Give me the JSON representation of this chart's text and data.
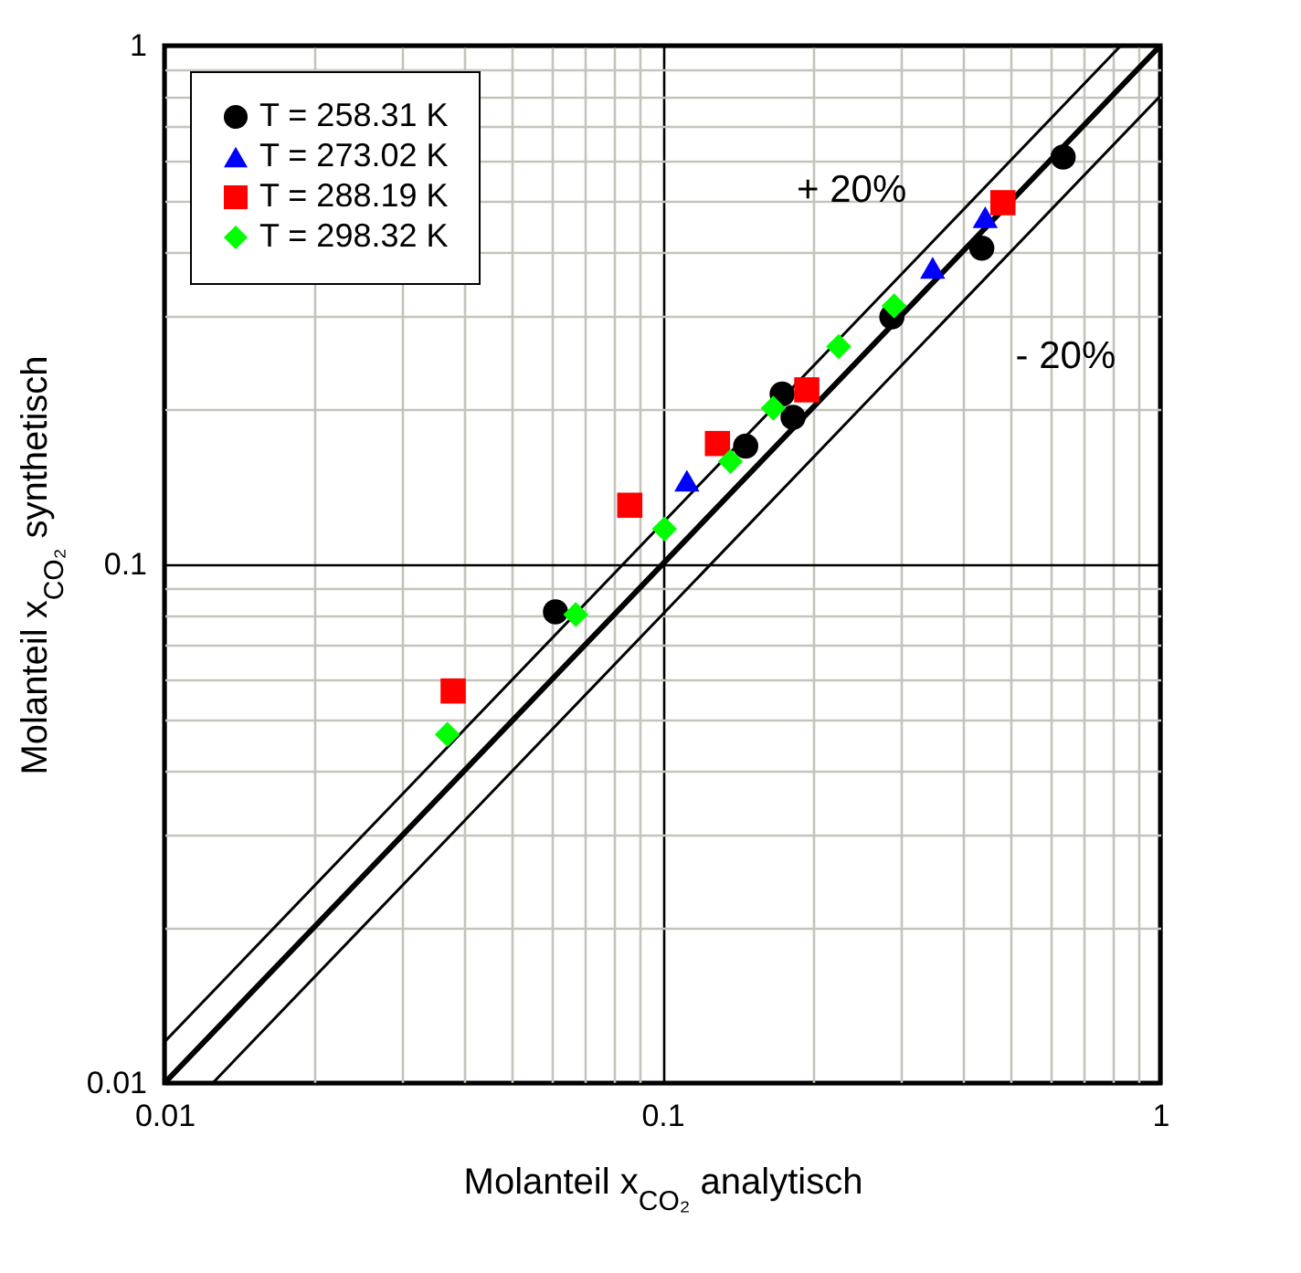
{
  "chart_data": {
    "type": "scatter",
    "xlabel": "Molanteil x$_{CO₂}$ analytisch",
    "ylabel": "Molanteil x$_{CO₂}$ synthetisch",
    "log": "xy",
    "grid": true,
    "legend": "top left",
    "xlim": [
      0.01,
      1
    ],
    "ylim": [
      0.01,
      1
    ],
    "xticks": [
      0.01,
      {
        "value": 0.02,
        "label": null
      },
      {
        "value": 0.03,
        "label": null
      },
      {
        "value": 0.04,
        "label": null
      },
      {
        "value": 0.05,
        "label": null
      },
      {
        "value": 0.06,
        "label": null
      },
      {
        "value": 0.07,
        "label": null
      },
      {
        "value": 0.08,
        "label": null
      },
      {
        "value": 0.09,
        "label": null
      },
      0.1,
      {
        "value": 0.2,
        "label": null
      },
      {
        "value": 0.3,
        "label": null
      },
      {
        "value": 0.4,
        "label": null
      },
      {
        "value": 0.5,
        "label": null
      },
      {
        "value": 0.6,
        "label": null
      },
      {
        "value": 0.7,
        "label": null
      },
      {
        "value": 0.8,
        "label": null
      },
      {
        "value": 0.9,
        "label": null
      },
      1
    ],
    "yticks": [
      0.01,
      {
        "value": 0.02,
        "label": null
      },
      {
        "value": 0.03,
        "label": null
      },
      {
        "value": 0.04,
        "label": null
      },
      {
        "value": 0.05,
        "label": null
      },
      {
        "value": 0.06,
        "label": null
      },
      {
        "value": 0.07,
        "label": null
      },
      {
        "value": 0.08,
        "label": null
      },
      {
        "value": 0.09,
        "label": null
      },
      0.1,
      {
        "value": 0.2,
        "label": null
      },
      {
        "value": 0.3,
        "label": null
      },
      {
        "value": 0.4,
        "label": null
      },
      {
        "value": 0.5,
        "label": null
      },
      {
        "value": 0.6,
        "label": null
      },
      {
        "value": 0.7,
        "label": null
      },
      {
        "value": 0.8,
        "label": null
      },
      {
        "value": 0.9,
        "label": null
      },
      1
    ],
    "series": [
      {
        "type": "line",
        "color": "#000000",
        "x": [
          0.01,
          1
        ],
        "values": [
          0.01,
          1
        ]
      },
      {
        "type": "line",
        "color": "#000000",
        "x": [
          0.01,
          0.833
        ],
        "values": [
          0.012,
          1
        ]
      },
      {
        "type": "line",
        "color": "#000000",
        "x": [
          0.0125,
          1
        ],
        "values": [
          0.01,
          0.8
        ]
      },
      {
        "name": "T = 258.31 K",
        "marker": "circle",
        "color": "#000000",
        "x": [
          0.061,
          0.147,
          0.174,
          0.183,
          0.289,
          0.438,
          0.638
        ],
        "values": [
          0.081,
          0.169,
          0.213,
          0.192,
          0.3,
          0.407,
          0.61
        ]
      },
      {
        "name": "T = 273.02 K",
        "marker": "triangle",
        "color": "#0000ff",
        "x": [
          0.112,
          0.349,
          0.445
        ],
        "values": [
          0.145,
          0.373,
          0.467
        ]
      },
      {
        "name": "T = 288.19 K",
        "marker": "square",
        "color": "#ff0000",
        "x": [
          0.038,
          0.086,
          0.129,
          0.195,
          0.483
        ],
        "values": [
          0.057,
          0.13,
          0.171,
          0.217,
          0.498
        ]
      },
      {
        "name": "T = 298.32 K",
        "marker": "diamond",
        "color": "#00ff00",
        "x": [
          0.037,
          0.067,
          0.101,
          0.137,
          0.167,
          0.226,
          0.292
        ],
        "values": [
          0.047,
          0.08,
          0.117,
          0.158,
          0.2,
          0.263,
          0.315
        ]
      }
    ],
    "annotations": [
      "+ 20%",
      "- 20%"
    ]
  }
}
